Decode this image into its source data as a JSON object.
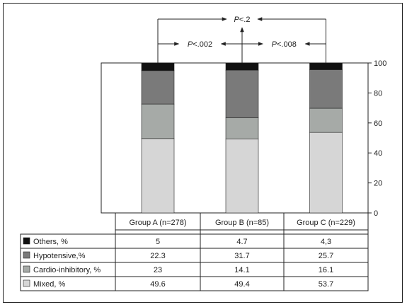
{
  "chart_data": {
    "type": "bar",
    "stacked": true,
    "categories": [
      "Group A (n=278)",
      "Group B (n=85)",
      "Group C (n=229)"
    ],
    "series": [
      {
        "name": "Others, %",
        "values": [
          "5",
          "4.7",
          "4,3"
        ],
        "numeric": [
          5,
          4.7,
          4.3
        ],
        "color": "#111111"
      },
      {
        "name": "Hypotensive,%",
        "values": [
          "22.3",
          "31.7",
          "25.7"
        ],
        "numeric": [
          22.3,
          31.7,
          25.7
        ],
        "color": "#7a7a7a"
      },
      {
        "name": "Cardio-inhibitory, %",
        "values": [
          "23",
          "14.1",
          "16.1"
        ],
        "numeric": [
          23,
          14.1,
          16.1
        ],
        "color": "#a6aaa7"
      },
      {
        "name": "Mixed, %",
        "values": [
          "49.6",
          "49.4",
          "53.7"
        ],
        "numeric": [
          49.6,
          49.4,
          53.7
        ],
        "color": "#d6d6d6"
      }
    ],
    "y_axis": {
      "position": "right",
      "ylim": [
        0,
        100
      ],
      "ticks": [
        "0",
        "20",
        "40",
        "60",
        "80",
        "100"
      ]
    },
    "annotations": [
      {
        "text": "P<.2",
        "italic_letter": "P",
        "rest": "<.2",
        "between": [
          "Group A (n=278)",
          "Group C (n=229)"
        ]
      },
      {
        "text": "P<.002",
        "italic_letter": "P",
        "rest": "<.002",
        "between": [
          "Group A (n=278)",
          "Group B (n=85)"
        ]
      },
      {
        "text": "P<.008",
        "italic_letter": "P",
        "rest": "<.008",
        "between": [
          "Group B (n=85)",
          "Group C (n=229)"
        ]
      }
    ],
    "grid": false,
    "legend_placement": "table below chart"
  }
}
